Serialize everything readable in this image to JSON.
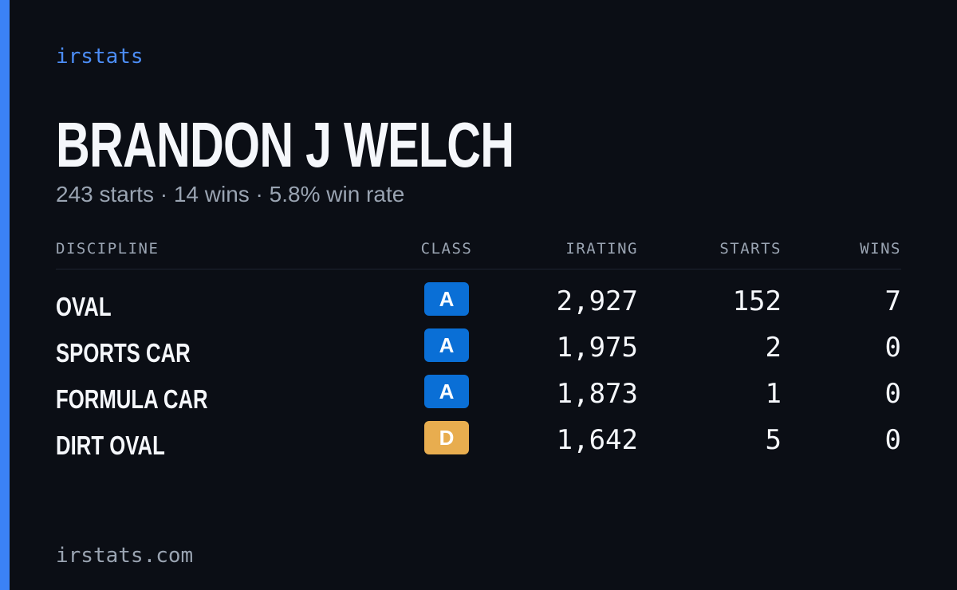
{
  "header": {
    "brand": "irstats",
    "name": "BRANDON J WELCH",
    "summary": "243 starts · 14 wins · 5.8% win rate"
  },
  "table": {
    "columns": [
      "DISCIPLINE",
      "CLASS",
      "IRATING",
      "STARTS",
      "WINS"
    ],
    "rows": [
      {
        "discipline": "OVAL",
        "class": "A",
        "class_color": "#0a6fd6",
        "irating": "2,927",
        "starts": "152",
        "wins": "7"
      },
      {
        "discipline": "SPORTS CAR",
        "class": "A",
        "class_color": "#0a6fd6",
        "irating": "1,975",
        "starts": "2",
        "wins": "0"
      },
      {
        "discipline": "FORMULA CAR",
        "class": "A",
        "class_color": "#0a6fd6",
        "irating": "1,873",
        "starts": "1",
        "wins": "0"
      },
      {
        "discipline": "DIRT OVAL",
        "class": "D",
        "class_color": "#e8ad4f",
        "irating": "1,642",
        "starts": "5",
        "wins": "0"
      }
    ]
  },
  "footer": {
    "url": "irstats.com"
  }
}
